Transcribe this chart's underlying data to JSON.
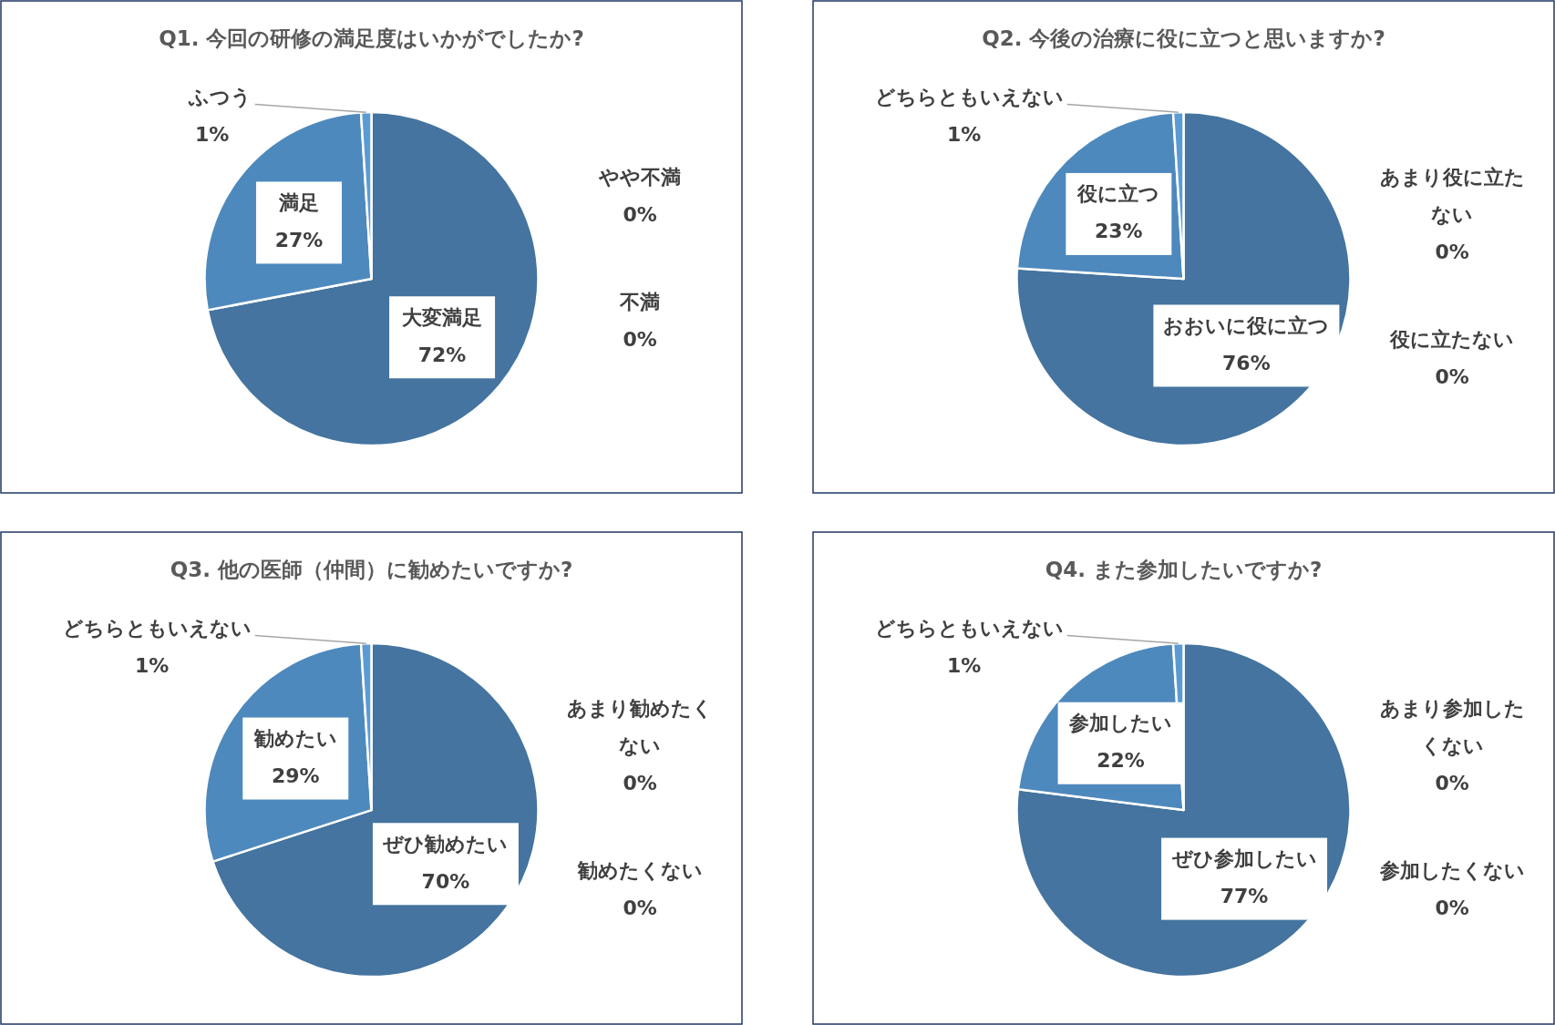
{
  "chart_data": [
    {
      "type": "pie",
      "title": "Q1. 今回の研修の満足度はいかがでしたか?",
      "categories": [
        "大変満足",
        "満足",
        "ふつう",
        "やや不満",
        "不満"
      ],
      "values": [
        72,
        27,
        1,
        0,
        0
      ],
      "value_labels": [
        "72%",
        "27%",
        "1%",
        "0%",
        "0%"
      ],
      "colors": [
        "#44749f",
        "#4e89bd",
        "#5b9bd5",
        null,
        null
      ]
    },
    {
      "type": "pie",
      "title": "Q2. 今後の治療に役に立つと思いますか?",
      "categories": [
        "おおいに役に立つ",
        "役に立つ",
        "どちらともいえない",
        "あまり役に立たない",
        "役に立たない"
      ],
      "values": [
        76,
        23,
        1,
        0,
        0
      ],
      "value_labels": [
        "76%",
        "23%",
        "1%",
        "0%",
        "0%"
      ],
      "colors": [
        "#44749f",
        "#4e89bd",
        "#5b9bd5",
        null,
        null
      ]
    },
    {
      "type": "pie",
      "title": "Q3. 他の医師（仲間）に勧めたいですか?",
      "categories": [
        "ぜひ勧めたい",
        "勧めたい",
        "どちらともいえない",
        "あまり勧めたくない",
        "勧めたくない"
      ],
      "values": [
        70,
        29,
        1,
        0,
        0
      ],
      "value_labels": [
        "70%",
        "29%",
        "1%",
        "0%",
        "0%"
      ],
      "colors": [
        "#44749f",
        "#4e89bd",
        "#5b9bd5",
        null,
        null
      ]
    },
    {
      "type": "pie",
      "title": "Q4. また参加したいですか?",
      "categories": [
        "ぜひ参加したい",
        "参加したい",
        "どちらともいえない",
        "あまり参加したくない",
        "参加したくない"
      ],
      "values": [
        77,
        22,
        1,
        0,
        0
      ],
      "value_labels": [
        "77%",
        "22%",
        "1%",
        "0%",
        "0%"
      ],
      "colors": [
        "#44749f",
        "#4e89bd",
        "#5b9bd5",
        null,
        null
      ]
    }
  ]
}
